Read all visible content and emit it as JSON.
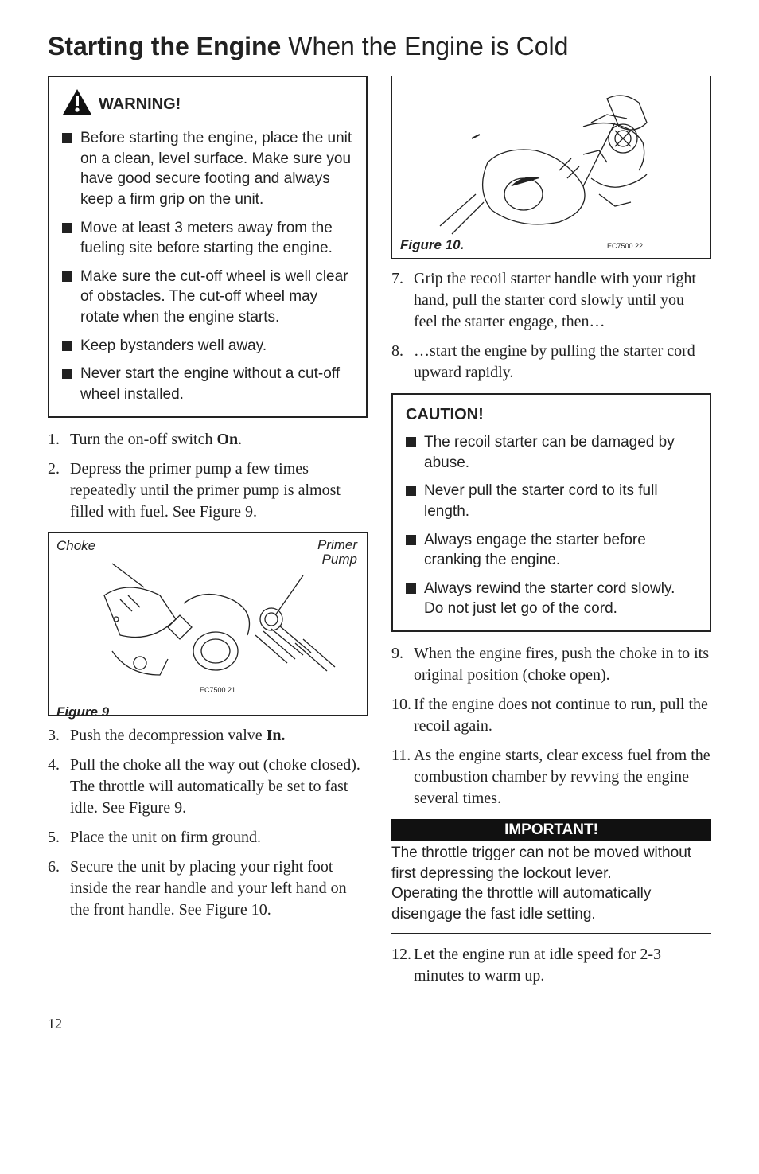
{
  "title": {
    "bold": "Starting the Engine",
    "light": " When the Engine is Cold"
  },
  "warning": {
    "heading": "WARNING!",
    "items": [
      "Before starting the engine, place the unit on a clean, level surface. Make sure you have good secure footing and always keep a firm grip on the unit.",
      "Move at least 3 meters away from the fueling site before starting the engine.",
      "Make sure the cut-off wheel is well clear of obstacles. The cut-off wheel may rotate when the engine starts.",
      "Keep bystanders well away.",
      "Never start the engine without a cut-off wheel installed."
    ]
  },
  "steps_left": [
    {
      "n": "1.",
      "t": "Turn the on-off switch <b>On</b>."
    },
    {
      "n": "2.",
      "t": "Depress the primer pump a few times repeatedly until the primer pump is almost filled with fuel. See Figure 9."
    }
  ],
  "figure9": {
    "choke_label": "Choke",
    "primer_label": "Primer Pump",
    "code": "EC7500.21",
    "caption": "Figure 9"
  },
  "steps_left2": [
    {
      "n": "3.",
      "t": "Push the decompression valve <b>In.</b>"
    },
    {
      "n": "4.",
      "t": "Pull the choke all the way out (choke closed). The throttle will automatically be set to fast idle. See Figure 9."
    },
    {
      "n": "5.",
      "t": "Place the unit on firm ground."
    },
    {
      "n": "6.",
      "t": "Secure the unit by placing your right foot inside the rear handle and your left hand on the front handle. See Figure 10."
    }
  ],
  "figure10": {
    "code": "EC7500.22",
    "caption": "Figure 10."
  },
  "steps_right1": [
    {
      "n": "7.",
      "t": "Grip the recoil starter handle with your right hand, pull the starter cord slowly until you feel the starter engage, then…"
    },
    {
      "n": "8.",
      "t": "…start the engine by pulling the starter cord upward rapidly."
    }
  ],
  "caution": {
    "heading": "CAUTION!",
    "items": [
      "The recoil starter can be damaged by abuse.",
      "Never pull the starter cord to its full length.",
      "Always engage the starter before cranking the engine.",
      "Always rewind the starter cord slowly. Do not just let go of the cord."
    ]
  },
  "steps_right2": [
    {
      "n": "9.",
      "t": "When the engine fires, push the choke in to its original position (choke open)."
    },
    {
      "n": "10.",
      "t": "If the engine does not continue to run, pull the recoil again."
    },
    {
      "n": "11.",
      "t": "As the engine starts, clear excess fuel from the combustion chamber by revving the engine several times."
    }
  ],
  "important": {
    "heading": "IMPORTANT!",
    "text": "The throttle trigger can not be moved without first depressing the lockout lever.<br>Operating the throttle will automatically disengage the fast idle setting."
  },
  "steps_right3": [
    {
      "n": "12.",
      "t": "Let the engine run at idle speed for 2-3 minutes to warm up."
    }
  ],
  "page_number": "12"
}
